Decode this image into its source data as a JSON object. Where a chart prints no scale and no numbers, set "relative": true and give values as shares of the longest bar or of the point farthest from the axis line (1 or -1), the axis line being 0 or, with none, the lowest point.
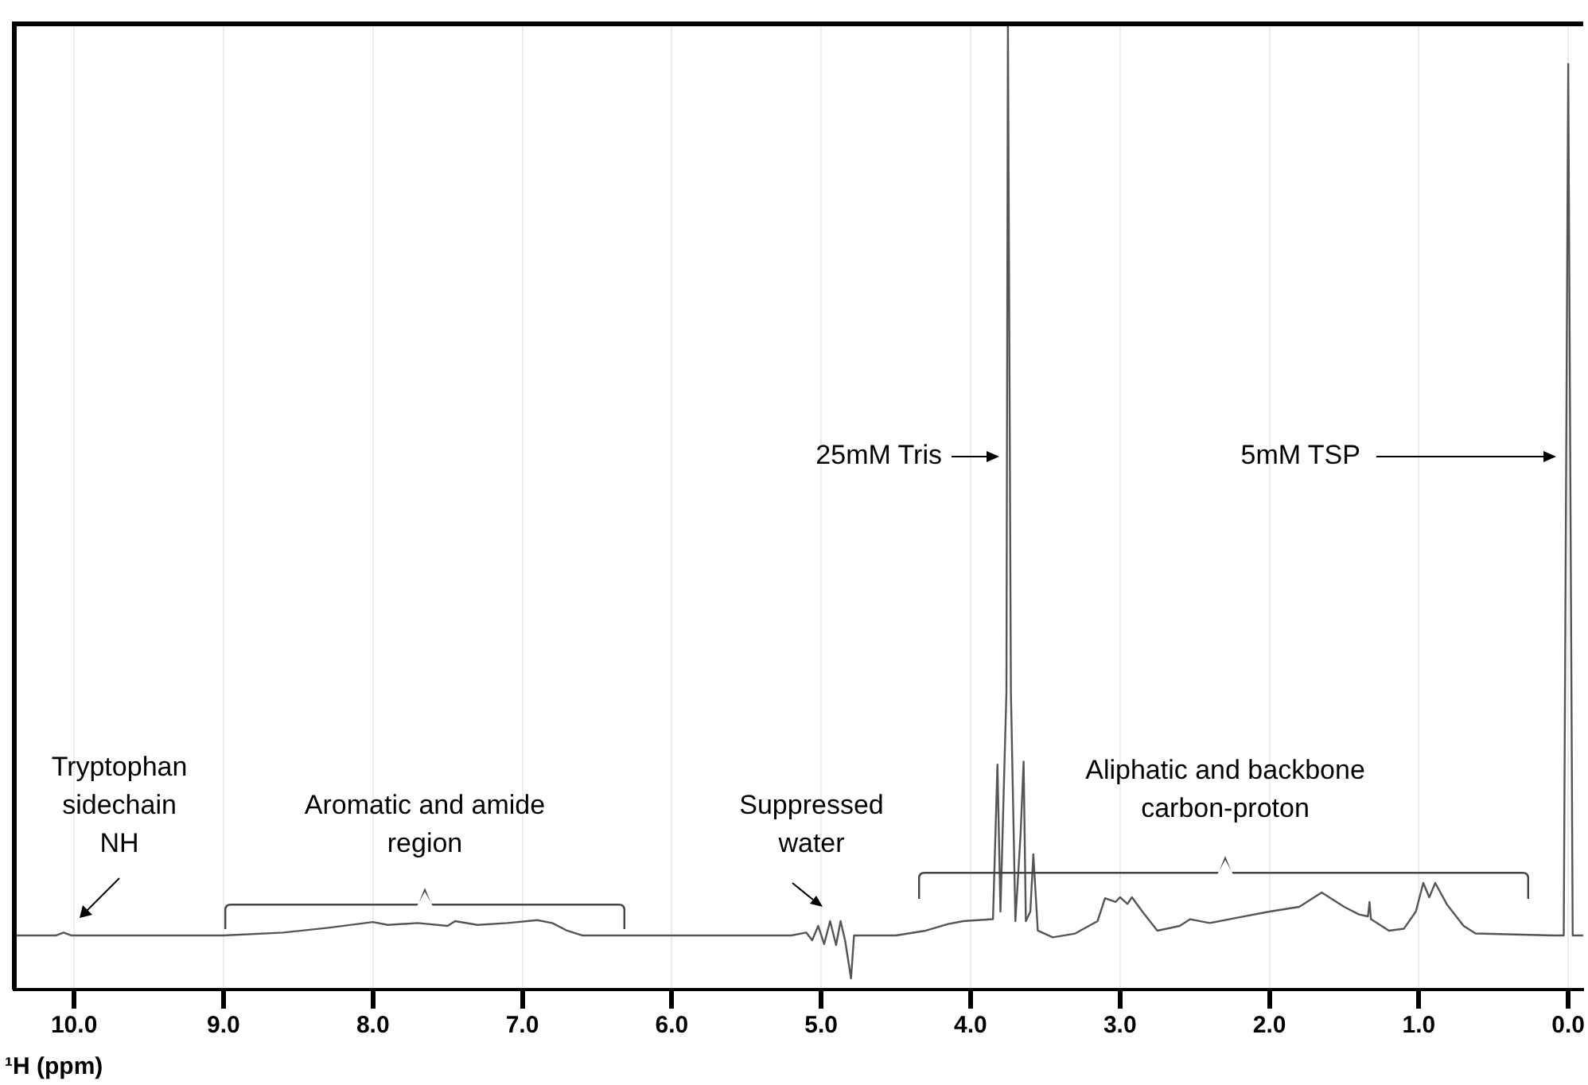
{
  "chart_data": {
    "type": "line",
    "relative": true,
    "xlabel": "¹H (ppm)",
    "xlim": [
      10.4,
      -0.1
    ],
    "xticks": [
      {
        "value": 10,
        "label": "10.0"
      },
      {
        "value": 9,
        "label": "9.0"
      },
      {
        "value": 8,
        "label": "8.0"
      },
      {
        "value": 7,
        "label": "7.0"
      },
      {
        "value": 6,
        "label": "6.0"
      },
      {
        "value": 5,
        "label": "5.0"
      },
      {
        "value": 4,
        "label": "4.0"
      },
      {
        "value": 3,
        "label": "3.0"
      },
      {
        "value": 2,
        "label": "2.0"
      },
      {
        "value": 1,
        "label": "1.0"
      },
      {
        "value": 0,
        "label": "0.0"
      }
    ],
    "grid": "x",
    "legend": false,
    "marker": "none",
    "line_style": "solid",
    "series": [
      {
        "color": "#555555",
        "x": [
          10.4,
          10.12,
          10.07,
          10.02,
          9.0,
          8.6,
          8.3,
          8.0,
          7.9,
          7.7,
          7.5,
          7.45,
          7.3,
          7.1,
          6.9,
          6.8,
          6.7,
          6.6,
          5.2,
          5.1,
          5.06,
          5.02,
          4.98,
          4.94,
          4.9,
          4.87,
          4.84,
          4.8,
          4.78,
          4.5,
          4.3,
          4.15,
          4.05,
          3.85,
          3.82,
          3.8,
          3.76,
          3.75,
          3.73,
          3.7,
          3.665,
          3.645,
          3.63,
          3.6,
          3.58,
          3.55,
          3.45,
          3.3,
          3.15,
          3.1,
          3.03,
          3.0,
          2.95,
          2.92,
          2.85,
          2.75,
          2.6,
          2.53,
          2.4,
          2.2,
          2.0,
          1.8,
          1.65,
          1.5,
          1.4,
          1.34,
          1.33,
          1.32,
          1.2,
          1.1,
          1.02,
          0.97,
          0.93,
          0.89,
          0.81,
          0.7,
          0.62,
          0.1,
          0.03,
          0.0,
          -0.03,
          -0.1
        ],
        "values": [
          0.045,
          0.045,
          0.048,
          0.045,
          0.045,
          0.048,
          0.053,
          0.059,
          0.056,
          0.058,
          0.055,
          0.06,
          0.056,
          0.058,
          0.061,
          0.058,
          0.05,
          0.045,
          0.045,
          0.048,
          0.04,
          0.055,
          0.036,
          0.06,
          0.035,
          0.06,
          0.04,
          0,
          0.045,
          0.045,
          0.05,
          0.057,
          0.06,
          0.062,
          0.224,
          0.07,
          0.3,
          1,
          0.3,
          0.06,
          0.152,
          0.227,
          0.06,
          0.07,
          0.13,
          0.05,
          0.043,
          0.047,
          0.06,
          0.084,
          0.08,
          0.085,
          0.078,
          0.085,
          0.07,
          0.05,
          0.055,
          0.062,
          0.058,
          0.064,
          0.07,
          0.075,
          0.09,
          0.075,
          0.067,
          0.065,
          0.08,
          0.062,
          0.05,
          0.052,
          0.07,
          0.1,
          0.085,
          0.1,
          0.077,
          0.055,
          0.047,
          0.045,
          0.045,
          0.958,
          0.045,
          0.045
        ]
      }
    ],
    "annotations": [
      "Tryptophan sidechain NH",
      "Aromatic and amide region",
      "Suppressed water",
      "Aliphatic and backbone carbon-proton",
      "25mM Tris",
      "5mM TSP"
    ]
  }
}
